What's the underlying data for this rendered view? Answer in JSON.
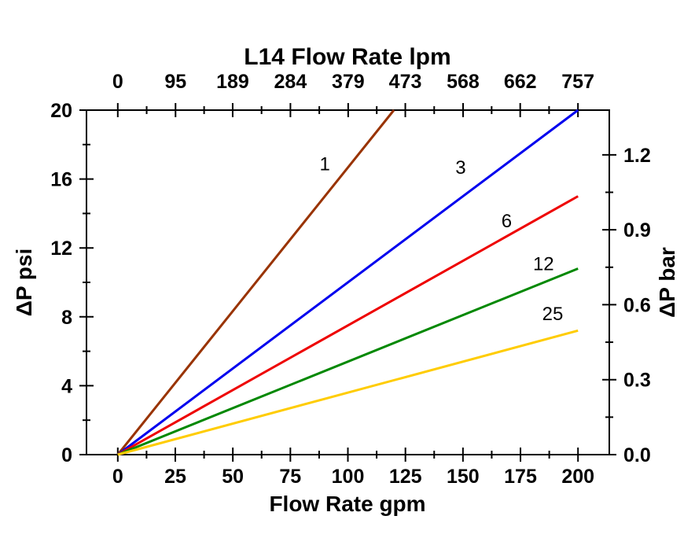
{
  "chart": {
    "background_color": "#FFFFFF",
    "frame_color": "#000000"
  },
  "chart_data": {
    "type": "line",
    "title": "L14 Flow Rate lpm",
    "xlabel": "Flow Rate gpm",
    "ylabel_left": "ΔP psi",
    "ylabel_right": "ΔP bar",
    "grid": false,
    "legend_position": "inline-labels",
    "x_axis_gpm": {
      "ticks": [
        0,
        25,
        50,
        75,
        100,
        125,
        150,
        175,
        200
      ],
      "lim": [
        -13.6,
        213.6
      ]
    },
    "top_axis_lpm": {
      "ticks": [
        0,
        95,
        189,
        284,
        379,
        473,
        568,
        662,
        757
      ],
      "lpm_per_gpm": 3.78541
    },
    "y_axis_psi": {
      "ticks": [
        0,
        4,
        8,
        12,
        16,
        20
      ],
      "lim": [
        0,
        20
      ]
    },
    "right_axis_bar": {
      "ticks": [
        "0.0",
        "0.3",
        "0.6",
        "0.9",
        "1.2"
      ],
      "bar_per_psi": 0.0689476
    },
    "series": [
      {
        "name": "1",
        "color": "#993300",
        "slope_psi_per_gpm": 0.1667,
        "points": [
          [
            0,
            0
          ],
          [
            120,
            20
          ]
        ],
        "label": {
          "text": "1",
          "x_gpm": 90,
          "y_psi": 16.5
        }
      },
      {
        "name": "3",
        "color": "#0000EE",
        "slope_psi_per_gpm": 0.1,
        "points": [
          [
            0,
            0
          ],
          [
            200,
            20
          ]
        ],
        "label": {
          "text": "3",
          "x_gpm": 149,
          "y_psi": 16.3
        }
      },
      {
        "name": "6",
        "color": "#EE0000",
        "slope_psi_per_gpm": 0.075,
        "points": [
          [
            0,
            0
          ],
          [
            200,
            15
          ]
        ],
        "label": {
          "text": "6",
          "x_gpm": 169,
          "y_psi": 13.2
        }
      },
      {
        "name": "12",
        "color": "#008800",
        "slope_psi_per_gpm": 0.054,
        "points": [
          [
            0,
            0
          ],
          [
            200,
            10.8
          ]
        ],
        "label": {
          "text": "12",
          "x_gpm": 185,
          "y_psi": 10.7
        }
      },
      {
        "name": "25",
        "color": "#FFCC00",
        "slope_psi_per_gpm": 0.036,
        "points": [
          [
            0,
            0
          ],
          [
            200,
            7.2
          ]
        ],
        "label": {
          "text": "25",
          "x_gpm": 189,
          "y_psi": 7.8
        }
      }
    ]
  }
}
